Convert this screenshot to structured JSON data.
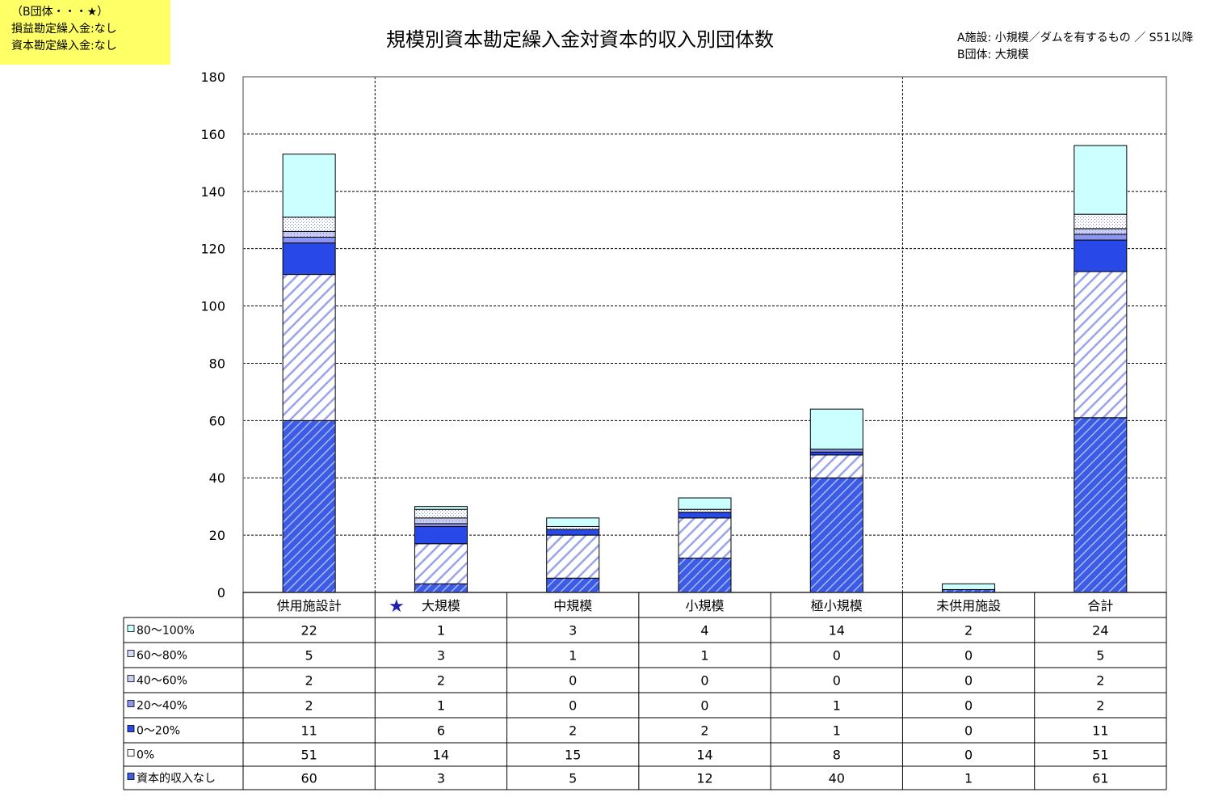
{
  "note": {
    "line1": "（B団体・・・★）",
    "line2": "損益勘定繰入金:なし",
    "line3": "資本勘定繰入金:なし"
  },
  "title": "規模別資本勘定繰入金対資本的収入別団体数",
  "legend_note": {
    "a": "A施設: 小規模／ダムを有するもの ／ S51以降",
    "b": "B団体: 大規模"
  },
  "colors": {
    "zero_income": "#3d5ce6",
    "pct_0": "#9aa4ea",
    "pct_0_20": "#2848e8",
    "pct_20_40": "#8d96ee",
    "pct_40_60": "#c8cdf4",
    "pct_60_80": "#d6dcf6",
    "pct_80_100": "#ccffff",
    "star": "#1f1fb0"
  },
  "chart_data": {
    "type": "bar",
    "stacked": true,
    "categories": [
      "供用施設計",
      "大規模",
      "中規模",
      "小規模",
      "極小規模",
      "未供用施設",
      "合計"
    ],
    "category_markers": [
      "",
      "★",
      "",
      "",
      "",
      "",
      ""
    ],
    "ylim": [
      0,
      180
    ],
    "yticks": [
      0,
      20,
      40,
      60,
      80,
      100,
      120,
      140,
      160,
      180
    ],
    "grid": true,
    "series": [
      {
        "name": "資本的収入なし",
        "pattern": "zero_income",
        "values": [
          60,
          3,
          5,
          12,
          40,
          1,
          61
        ]
      },
      {
        "name": "0%",
        "pattern": "pct_0",
        "values": [
          51,
          14,
          15,
          14,
          8,
          0,
          51
        ]
      },
      {
        "name": "0～20%",
        "pattern": "pct_0_20",
        "values": [
          11,
          6,
          2,
          2,
          1,
          0,
          11
        ]
      },
      {
        "name": "20～40%",
        "pattern": "pct_20_40",
        "values": [
          2,
          1,
          0,
          0,
          1,
          0,
          2
        ]
      },
      {
        "name": "40～60%",
        "pattern": "pct_40_60",
        "values": [
          2,
          2,
          0,
          0,
          0,
          0,
          2
        ]
      },
      {
        "name": "60～80%",
        "pattern": "pct_60_80",
        "values": [
          5,
          3,
          1,
          1,
          0,
          0,
          5
        ]
      },
      {
        "name": "80～100%",
        "pattern": "pct_80_100",
        "values": [
          22,
          1,
          3,
          4,
          14,
          2,
          24
        ]
      }
    ],
    "table_row_order": [
      "80～100%",
      "60～80%",
      "40～60%",
      "20～40%",
      "0～20%",
      "0%",
      "資本的収入なし"
    ]
  }
}
